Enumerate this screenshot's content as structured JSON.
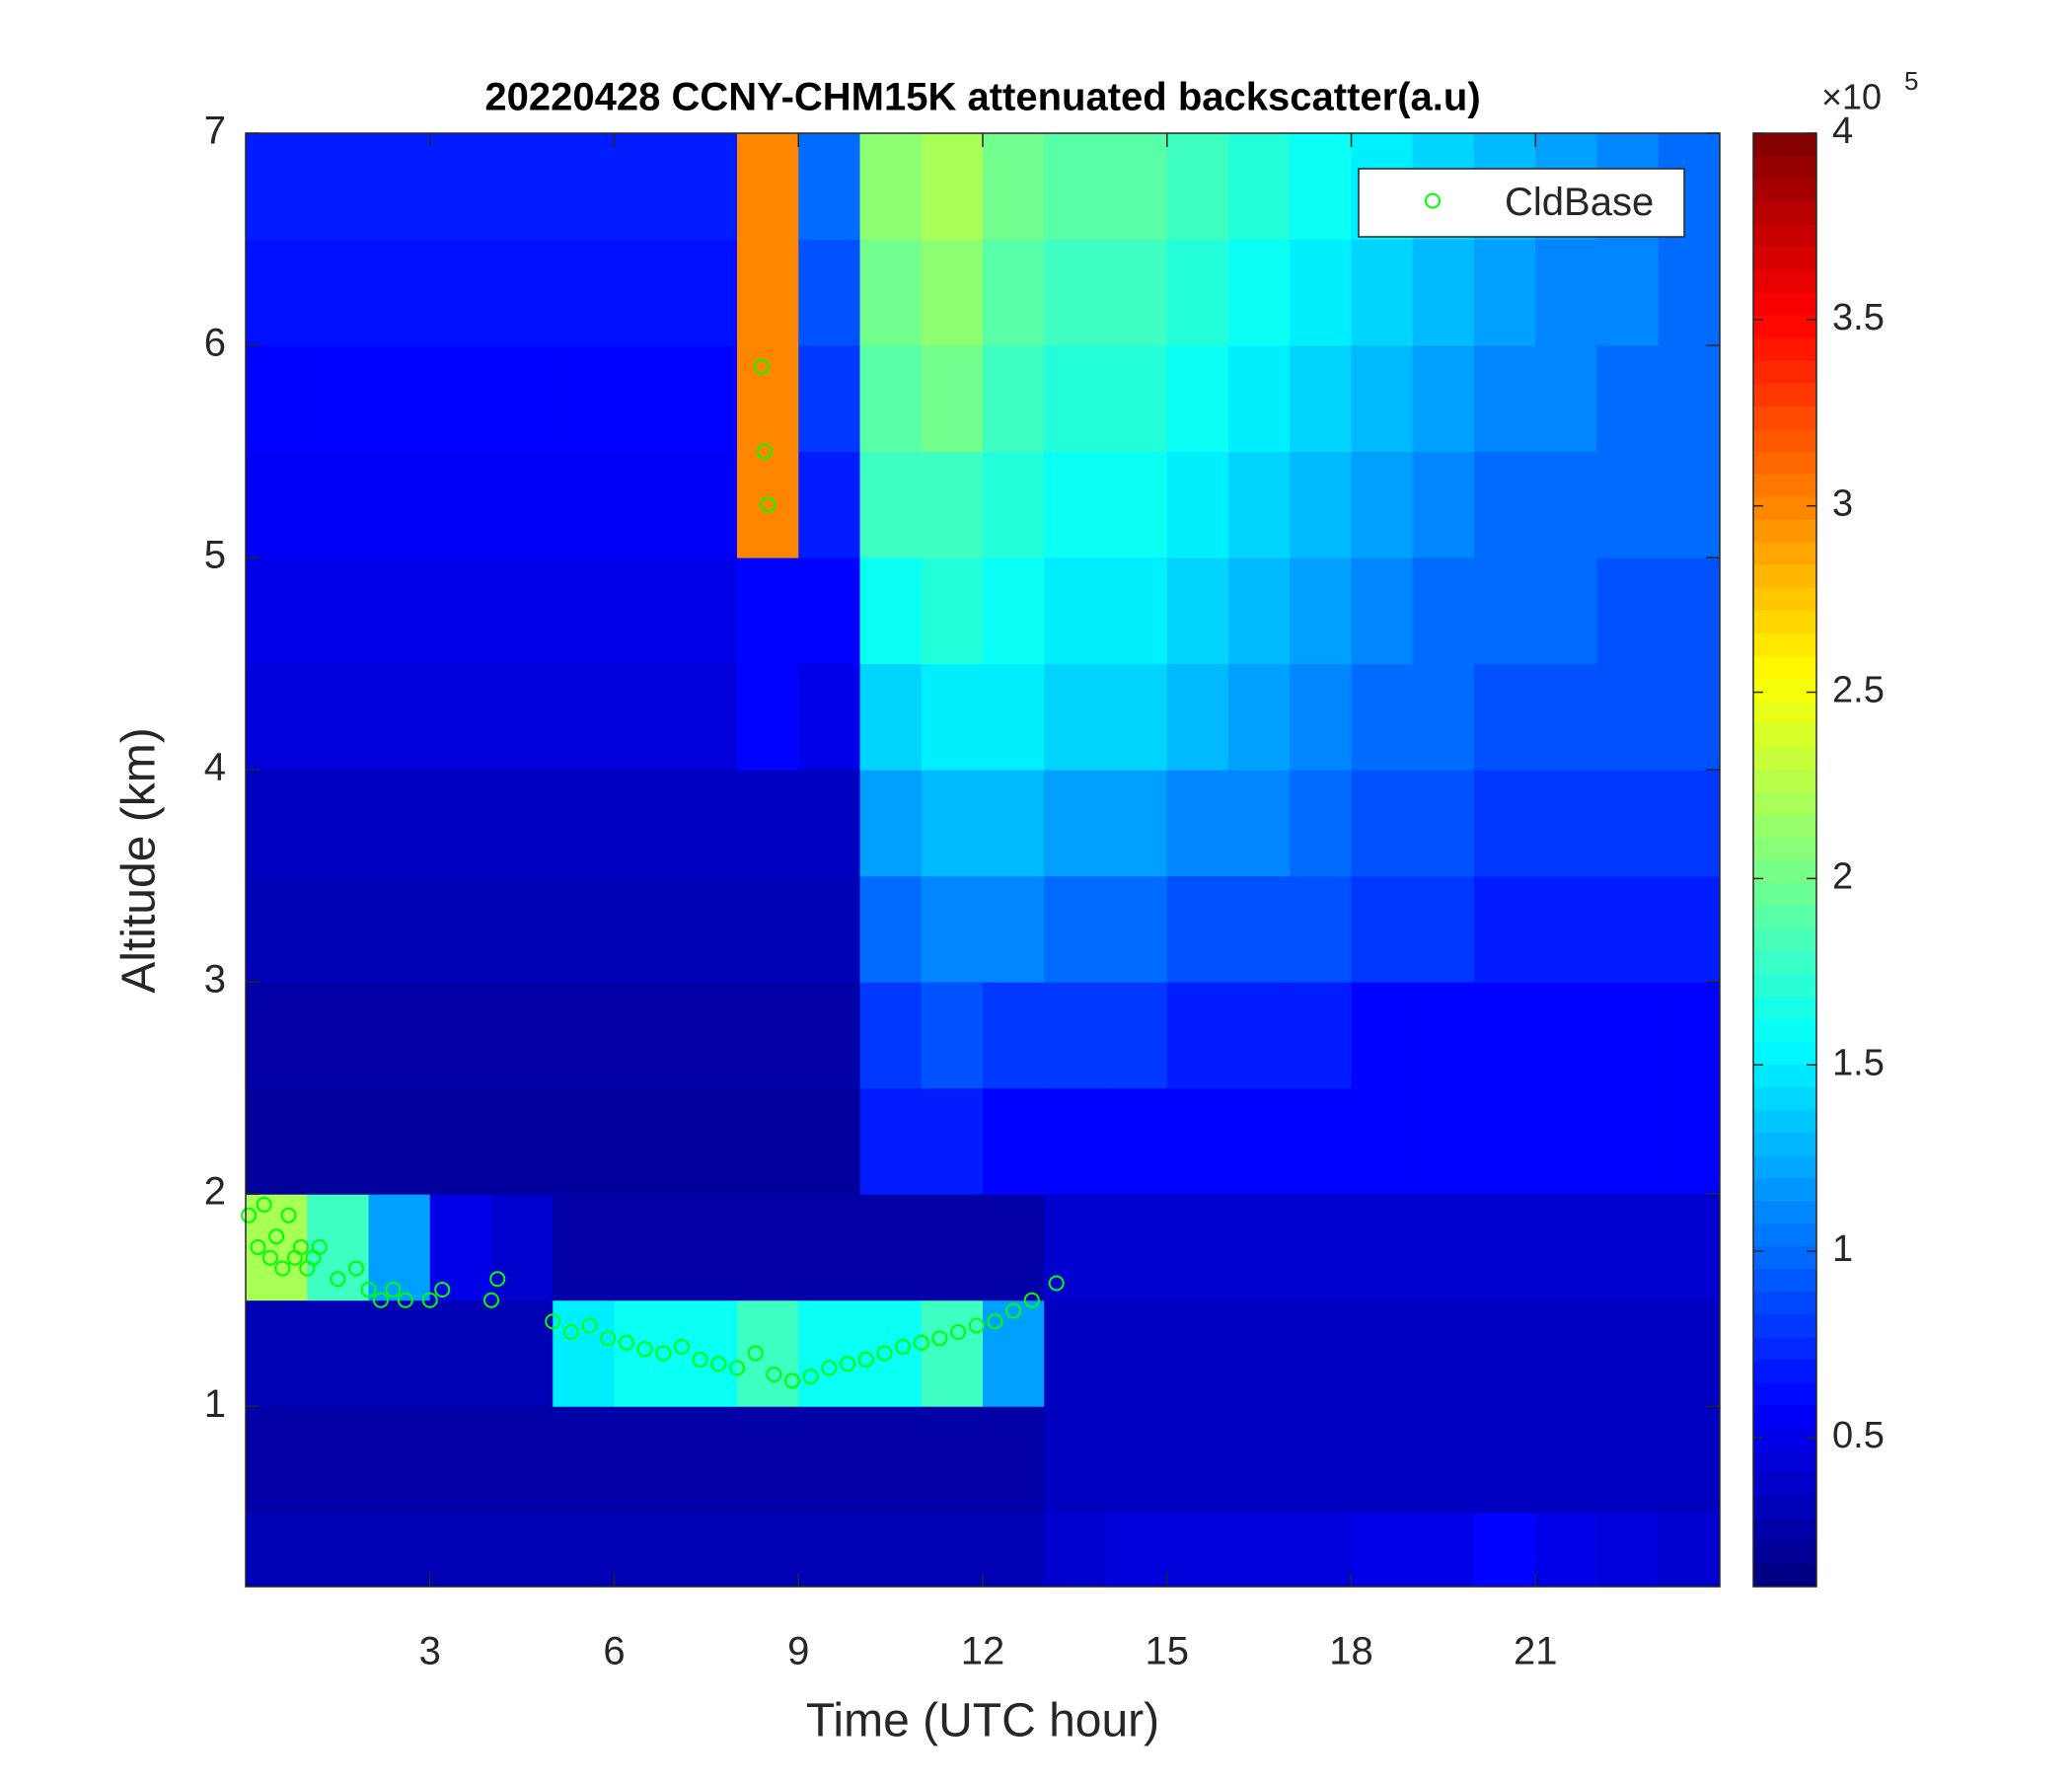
{
  "chart_data": {
    "type": "heatmap",
    "title": "20220428 CCNY-CHM15K attenuated backscatter(a.u)",
    "xlabel": "Time (UTC hour)",
    "ylabel": "Altitude (km)",
    "xlim": [
      0,
      24
    ],
    "ylim": [
      0.15,
      7
    ],
    "xticks": [
      3,
      6,
      9,
      12,
      15,
      18,
      21
    ],
    "yticks": [
      1,
      2,
      3,
      4,
      5,
      6,
      7
    ],
    "colormap": "jet",
    "clim": [
      0.1,
      4
    ],
    "cticks": [
      0.5,
      1,
      1.5,
      2,
      2.5,
      3,
      3.5,
      4
    ],
    "colorbar_multiplier": "×10",
    "colorbar_exponent": 5,
    "legend_position": "upper right",
    "heatmap": {
      "x_bins": [
        0,
        1,
        2,
        3,
        4,
        5,
        6,
        7,
        8,
        9,
        10,
        11,
        12,
        13,
        14,
        15,
        16,
        17,
        18,
        19,
        20,
        21,
        22,
        23,
        24
      ],
      "y_bins": [
        0.15,
        0.5,
        1,
        1.5,
        2,
        2.5,
        3,
        3.5,
        4,
        4.5,
        5,
        5.5,
        6,
        6.5,
        7
      ],
      "values": [
        [
          0.3,
          0.3,
          0.3,
          0.3,
          0.3,
          0.3,
          0.3,
          0.3,
          0.3,
          0.3,
          0.3,
          0.3,
          0.3,
          0.4,
          0.45,
          0.45,
          0.45,
          0.45,
          0.5,
          0.5,
          0.6,
          0.5,
          0.45,
          0.4
        ],
        [
          0.25,
          0.25,
          0.25,
          0.25,
          0.25,
          0.25,
          0.25,
          0.25,
          0.25,
          0.25,
          0.25,
          0.25,
          0.25,
          0.35,
          0.35,
          0.35,
          0.35,
          0.35,
          0.35,
          0.35,
          0.35,
          0.35,
          0.35,
          0.35
        ],
        [
          0.3,
          0.3,
          0.3,
          0.3,
          0.3,
          1.5,
          1.6,
          1.6,
          1.8,
          1.6,
          1.6,
          1.8,
          1.2,
          0.35,
          0.35,
          0.35,
          0.35,
          0.35,
          0.35,
          0.35,
          0.35,
          0.35,
          0.35,
          0.35
        ],
        [
          2.2,
          1.8,
          1.2,
          0.5,
          0.4,
          0.25,
          0.25,
          0.25,
          0.25,
          0.25,
          0.25,
          0.25,
          0.25,
          0.4,
          0.4,
          0.4,
          0.4,
          0.4,
          0.4,
          0.4,
          0.4,
          0.4,
          0.4,
          0.4
        ],
        [
          0.2,
          0.2,
          0.2,
          0.2,
          0.2,
          0.2,
          0.2,
          0.2,
          0.2,
          0.2,
          0.7,
          0.7,
          0.6,
          0.6,
          0.6,
          0.6,
          0.6,
          0.6,
          0.6,
          0.6,
          0.6,
          0.6,
          0.6,
          0.6
        ],
        [
          0.25,
          0.25,
          0.25,
          0.25,
          0.25,
          0.25,
          0.25,
          0.25,
          0.25,
          0.25,
          0.8,
          0.9,
          0.8,
          0.8,
          0.8,
          0.7,
          0.7,
          0.7,
          0.6,
          0.6,
          0.6,
          0.6,
          0.6,
          0.6
        ],
        [
          0.3,
          0.3,
          0.3,
          0.3,
          0.3,
          0.3,
          0.3,
          0.3,
          0.3,
          0.3,
          1.0,
          1.1,
          1.1,
          1.0,
          1.0,
          0.9,
          0.9,
          0.9,
          0.8,
          0.8,
          0.7,
          0.7,
          0.7,
          0.7
        ],
        [
          0.35,
          0.35,
          0.35,
          0.35,
          0.35,
          0.35,
          0.35,
          0.35,
          0.35,
          0.35,
          1.2,
          1.3,
          1.3,
          1.2,
          1.2,
          1.1,
          1.1,
          1.0,
          0.9,
          0.9,
          0.8,
          0.8,
          0.8,
          0.8
        ],
        [
          0.45,
          0.45,
          0.45,
          0.45,
          0.45,
          0.45,
          0.45,
          0.45,
          0.6,
          0.5,
          1.4,
          1.5,
          1.5,
          1.4,
          1.4,
          1.3,
          1.2,
          1.1,
          1.0,
          1.0,
          0.9,
          0.9,
          0.9,
          0.9
        ],
        [
          0.5,
          0.5,
          0.5,
          0.5,
          0.5,
          0.5,
          0.5,
          0.5,
          0.6,
          0.6,
          1.6,
          1.7,
          1.6,
          1.5,
          1.5,
          1.4,
          1.3,
          1.2,
          1.1,
          1.0,
          1.0,
          1.0,
          0.9,
          0.9
        ],
        [
          0.55,
          0.55,
          0.55,
          0.55,
          0.55,
          0.55,
          0.55,
          0.55,
          3.0,
          0.7,
          1.8,
          1.8,
          1.7,
          1.6,
          1.6,
          1.5,
          1.4,
          1.3,
          1.2,
          1.1,
          1.0,
          1.0,
          1.0,
          1.0
        ],
        [
          0.6,
          0.6,
          0.6,
          0.6,
          0.6,
          0.6,
          0.6,
          0.6,
          3.0,
          0.8,
          1.9,
          2.0,
          1.8,
          1.7,
          1.7,
          1.6,
          1.5,
          1.4,
          1.3,
          1.2,
          1.1,
          1.1,
          1.0,
          1.0
        ],
        [
          0.65,
          0.65,
          0.65,
          0.65,
          0.65,
          0.65,
          0.65,
          0.65,
          3.0,
          0.9,
          2.0,
          2.1,
          1.9,
          1.8,
          1.8,
          1.7,
          1.6,
          1.5,
          1.4,
          1.3,
          1.2,
          1.1,
          1.1,
          1.0
        ],
        [
          0.7,
          0.7,
          0.7,
          0.7,
          0.7,
          0.7,
          0.7,
          0.7,
          3.0,
          1.0,
          2.1,
          2.2,
          2.0,
          1.9,
          1.9,
          1.8,
          1.7,
          1.6,
          1.5,
          1.4,
          1.3,
          1.2,
          1.1,
          1.0
        ]
      ]
    },
    "series": [
      {
        "name": "CldBase",
        "type": "scatter",
        "color": "#00ff00",
        "x": [
          0.05,
          0.2,
          0.3,
          0.4,
          0.5,
          0.6,
          0.7,
          0.8,
          0.9,
          1.0,
          1.1,
          1.2,
          1.5,
          1.8,
          2.0,
          2.2,
          2.4,
          2.6,
          3.0,
          3.2,
          4.0,
          4.1,
          8.4,
          8.45,
          8.5,
          5.0,
          5.3,
          5.6,
          5.9,
          6.2,
          6.5,
          6.8,
          7.1,
          7.4,
          7.7,
          8.0,
          8.3,
          8.6,
          8.9,
          9.2,
          9.5,
          9.8,
          10.1,
          10.4,
          10.7,
          11.0,
          11.3,
          11.6,
          11.9,
          12.2,
          12.5,
          12.8,
          13.2
        ],
        "y": [
          1.9,
          1.75,
          1.95,
          1.7,
          1.8,
          1.65,
          1.9,
          1.7,
          1.75,
          1.65,
          1.7,
          1.75,
          1.6,
          1.65,
          1.55,
          1.5,
          1.55,
          1.5,
          1.5,
          1.55,
          1.5,
          1.6,
          5.9,
          5.5,
          5.25,
          1.4,
          1.35,
          1.38,
          1.32,
          1.3,
          1.27,
          1.25,
          1.28,
          1.22,
          1.2,
          1.18,
          1.25,
          1.15,
          1.12,
          1.14,
          1.18,
          1.2,
          1.22,
          1.25,
          1.28,
          1.3,
          1.32,
          1.35,
          1.38,
          1.4,
          1.45,
          1.5,
          1.58
        ]
      }
    ]
  }
}
